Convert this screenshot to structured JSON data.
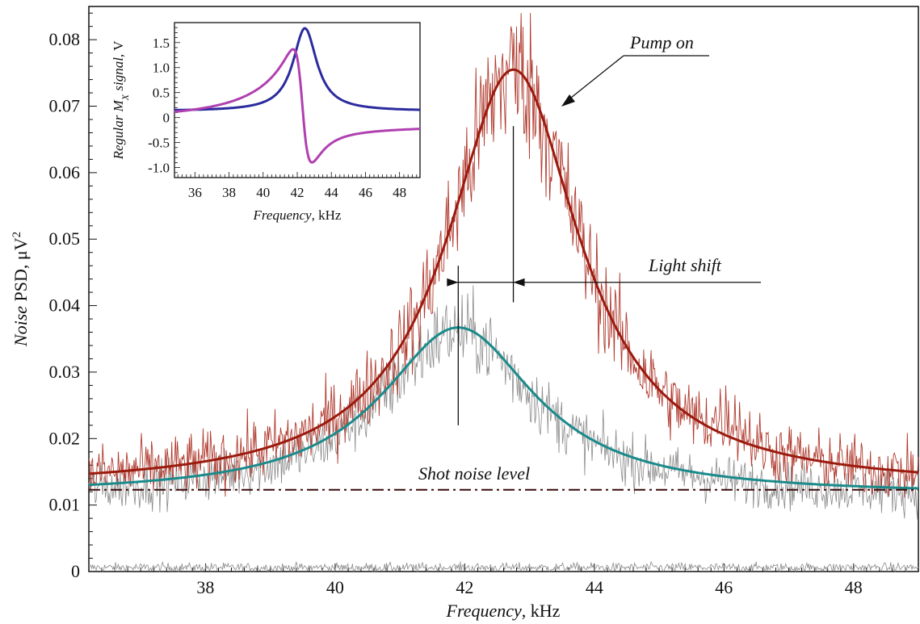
{
  "chart_data": [
    {
      "type": "line",
      "xlabel": {
        "italic": "Frequency",
        "unit": ", kHz"
      },
      "ylabel": {
        "italic": "Noise",
        "plain": " PSD, μV",
        "sup": "2"
      },
      "xlim": [
        36.2,
        49.0
      ],
      "ylim": [
        0,
        0.085
      ],
      "xticks": [
        "38",
        "40",
        "42",
        "44",
        "46",
        "48"
      ],
      "xtick_values": [
        38,
        40,
        42,
        44,
        46,
        48
      ],
      "yticks": [
        "0",
        "0.01",
        "0.02",
        "0.03",
        "0.04",
        "0.05",
        "0.06",
        "0.07",
        "0.08"
      ],
      "ytick_values": [
        0,
        0.01,
        0.02,
        0.03,
        0.04,
        0.05,
        0.06,
        0.07,
        0.08
      ],
      "series": [
        {
          "name": "Pump on",
          "kind": "lorentzian_fit",
          "color": "#9b1a0e",
          "center": 42.75,
          "hwhm": 1.25,
          "peak": 0.0755,
          "baseline": 0.0125
        },
        {
          "kind": "lorentzian_fit",
          "color": "#1a8a8a",
          "center": 41.9,
          "hwhm": 1.45,
          "peak": 0.0367,
          "baseline": 0.0115
        },
        {
          "kind": "noisy_data",
          "color": "#b03a2e",
          "follows": "Pump on"
        },
        {
          "kind": "noisy_data",
          "color": "#8a8a8a",
          "follows": 1
        },
        {
          "kind": "noisy_data",
          "color": "#8a8a8a",
          "level": 0.0006
        }
      ],
      "shot_noise_level": 0.0123,
      "annotations": {
        "pump_on": "Pump on",
        "light_shift": "Light shift",
        "shot_noise": "Shot noise level"
      },
      "light_shift_markers": {
        "pump_off_center": 41.9,
        "pump_on_center": 42.75
      }
    },
    {
      "type": "line",
      "inset": true,
      "xlabel": {
        "italic": "Frequency",
        "unit": ", kHz"
      },
      "ylabel": {
        "italic": "Regular M",
        "sub": "X",
        "italic2": " signal",
        "unit": ", V"
      },
      "xlim": [
        34.8,
        49.2
      ],
      "ylim": [
        -1.2,
        1.9
      ],
      "xticks": [
        "36",
        "38",
        "40",
        "42",
        "44",
        "46",
        "48"
      ],
      "xtick_values": [
        36,
        38,
        40,
        42,
        44,
        46,
        48
      ],
      "yticks": [
        "1.5",
        "1.0",
        "0.5",
        "0",
        "-0.5",
        "-1.0"
      ],
      "ytick_values": [
        1.5,
        1.0,
        0.5,
        0,
        -0.5,
        -1.0
      ],
      "series": [
        {
          "kind": "absorption",
          "color": "#2b2b9e",
          "center": 42.45,
          "hwhm": 0.85,
          "amplitude": 1.78
        },
        {
          "kind": "dispersion",
          "color": "#b040b0",
          "center": 42.3,
          "hwhm": 0.55,
          "amplitude": 1.12
        }
      ]
    }
  ]
}
